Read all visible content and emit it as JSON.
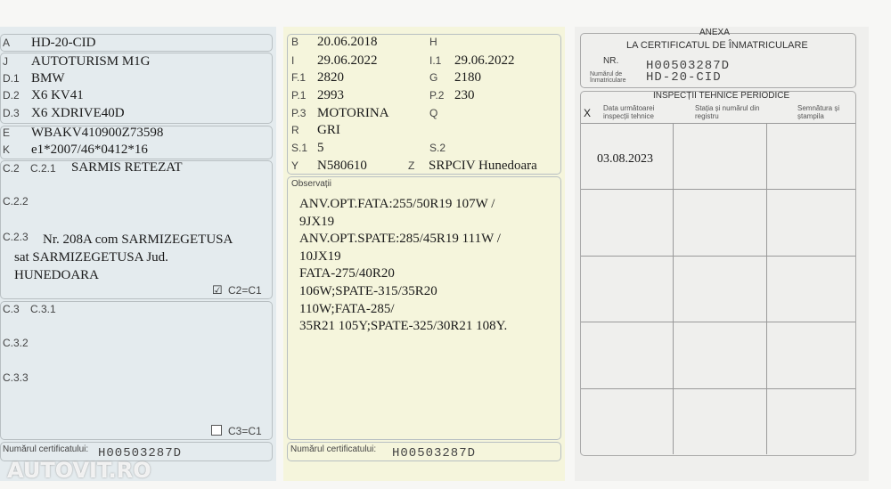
{
  "left": {
    "rows": [
      {
        "label": "A",
        "value": "HD-20-CID"
      },
      {
        "label": "J",
        "value": "AUTOTURISM M1G"
      },
      {
        "label": "D.1",
        "value": "BMW"
      },
      {
        "label": "D.2",
        "value": "X6 KV41"
      },
      {
        "label": "D.3",
        "value": "X6 XDRIVE40D"
      },
      {
        "label": "E",
        "value": "WBAKV410900Z73598"
      },
      {
        "label": "K",
        "value": "e1*2007/46*0412*16"
      }
    ],
    "c2": {
      "label": "C.2",
      "c21_label": "C.2.1",
      "c21_value": "SARMIS RETEZAT",
      "c22_label": "C.2.2",
      "c23_label": "C.2.3",
      "c23_lines": [
        "Nr. 208A com SARMIZEGETUSA",
        "sat SARMIZEGETUSA  Jud.",
        "HUNEDOARA"
      ],
      "check_label": "C2=C1",
      "checked": true
    },
    "c3": {
      "label": "C.3",
      "c31_label": "C.3.1",
      "c32_label": "C.3.2",
      "c33_label": "C.3.3",
      "check_label": "C3=C1",
      "checked": false
    },
    "cert_label": "Numărul certificatului:",
    "cert_value": "H00503287D",
    "watermark": "AUTOVIT.RO"
  },
  "middle": {
    "rows": [
      {
        "l1": "B",
        "v1": "20.06.2018",
        "l2": "H",
        "v2": ""
      },
      {
        "l1": "I",
        "v1": "29.06.2022",
        "l2": "I.1",
        "v2": "29.06.2022"
      },
      {
        "l1": "F.1",
        "v1": "2820",
        "l2": "G",
        "v2": "2180"
      },
      {
        "l1": "P.1",
        "v1": "2993",
        "l2": "P.2",
        "v2": "230"
      },
      {
        "l1": "P.3",
        "v1": "MOTORINA",
        "l2": "Q",
        "v2": ""
      },
      {
        "l1": "R",
        "v1": "GRI"
      },
      {
        "l1": "S.1",
        "v1": "5",
        "l2": "S.2",
        "v2": ""
      },
      {
        "l1": "Y",
        "v1": "N580610",
        "l2": "Z",
        "v2": "SRPCIV Hunedoara"
      }
    ],
    "obs_label": "Observații",
    "obs_lines": [
      "ANV.OPT.FATA:255/50R19 107W /",
      "9JX19",
      "ANV.OPT.SPATE:285/45R19 111W /",
      "10JX19",
      "FATA-275/40R20",
      "106W;SPATE-315/35R20",
      "110W;FATA-285/",
      "35R21 105Y;SPATE-325/30R21 108Y."
    ],
    "cert_label": "Numărul certificatului:",
    "cert_value": "H00503287D"
  },
  "right": {
    "title1": "ANEXA",
    "title2": "LA CERTIFICATUL DE ÎNMATRICULARE",
    "nr_label": "NR.",
    "nr_value": "H00503287D",
    "reg_label": "Numărul de înmatriculare",
    "reg_value": "HD-20-CID",
    "inspections_title": "INSPECȚII TEHNICE PERIODICE",
    "col_x": "X",
    "col1": "Data următoarei inspecții tehnice",
    "col2": "Stația și numărul din registru",
    "col3": "Semnătura și ștampila",
    "entries": [
      "03.08.2023"
    ]
  }
}
